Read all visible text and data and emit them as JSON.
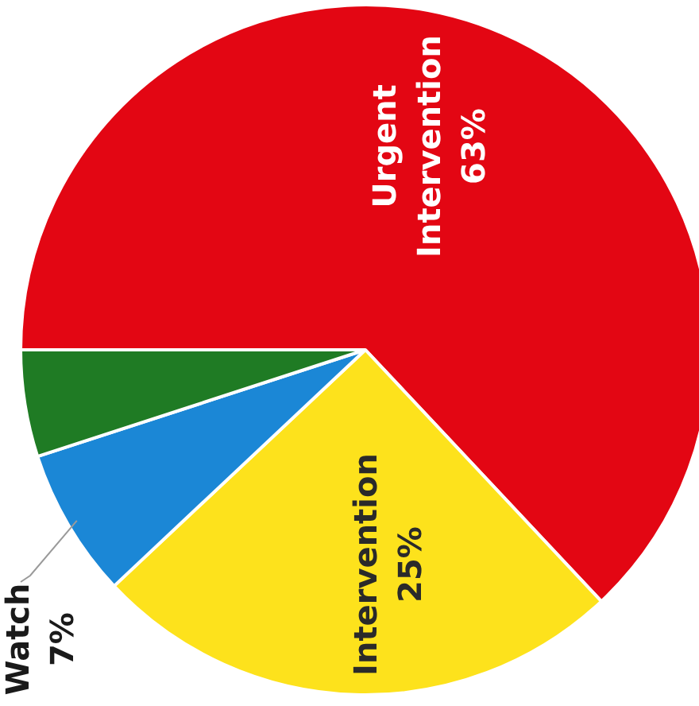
{
  "chart_data": {
    "type": "pie",
    "categories": [
      "Urgent Intervention",
      "Intervention",
      "Watch",
      null
    ],
    "values": [
      63,
      25,
      7,
      5
    ],
    "colors": [
      "#e30613",
      "#fde21c",
      "#1b87d6",
      "#1f7b24"
    ],
    "value_labels": [
      "63%",
      "25%",
      "7%",
      null
    ],
    "legend": false
  }
}
